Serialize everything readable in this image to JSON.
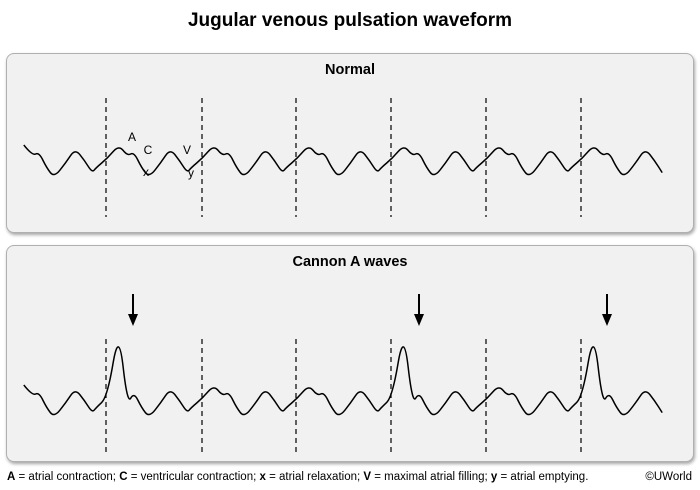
{
  "title": "Jugular venous pulsation waveform",
  "panels": {
    "normal": {
      "title": "Normal",
      "wave_labels": {
        "a": "A",
        "c": "C",
        "x": "x",
        "v": "V",
        "y": "y"
      }
    },
    "cannon": {
      "title": "Cannon A waves"
    }
  },
  "legend": [
    {
      "key": "A",
      "text": " = atrial contraction; "
    },
    {
      "key": "C",
      "text": " = ventricular contraction; "
    },
    {
      "key": "x",
      "text": " = atrial relaxation; "
    },
    {
      "key": "V",
      "text": " = maximal atrial filling; "
    },
    {
      "key": "y",
      "text": " = atrial emptying."
    }
  ],
  "copyright": "©UWorld"
}
